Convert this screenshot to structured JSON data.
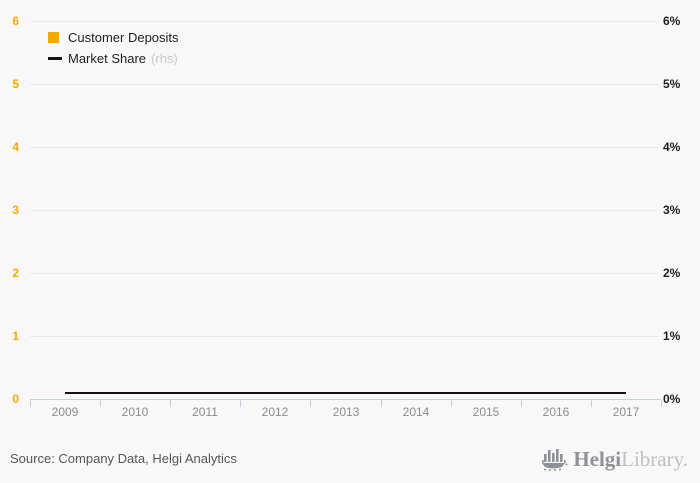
{
  "chart_data": {
    "type": "bar",
    "note_types": {
      "Customer Deposits": "bar",
      "Market Share": "line"
    },
    "categories": [
      "2009",
      "2010",
      "2011",
      "2012",
      "2013",
      "2014",
      "2015",
      "2016",
      "2017"
    ],
    "series": [
      {
        "name": "Customer Deposits",
        "axis": "left",
        "kind": "bar",
        "values": [
          0,
          0,
          0,
          0,
          0,
          0,
          0,
          0,
          0
        ]
      },
      {
        "name": "Market Share",
        "axis": "right",
        "kind": "line",
        "values": [
          0.1,
          0.1,
          0.1,
          0.1,
          0.1,
          0.1,
          0.1,
          0.1,
          0.1
        ]
      }
    ],
    "title": "",
    "xlabel": "",
    "ylabel_left": "",
    "ylabel_right": "",
    "left_axis": {
      "range": [
        0,
        6
      ],
      "ticks": [
        "6",
        "5",
        "4",
        "3",
        "2",
        "1",
        "0"
      ]
    },
    "right_axis": {
      "range": [
        0,
        6
      ],
      "ticks": [
        "6%",
        "5%",
        "4%",
        "3%",
        "2%",
        "1%",
        "0%"
      ]
    },
    "grid": "horizontal",
    "legend_position": "top-left"
  },
  "legend": {
    "items": [
      {
        "label": "Customer Deposits",
        "swatch": "square",
        "color": "#f7a800"
      },
      {
        "label": "Market Share",
        "suffix": "(rhs)",
        "swatch": "line",
        "color": "#141414"
      }
    ]
  },
  "footer": {
    "source": "Source: Company Data, Helgi Analytics",
    "logo": {
      "icon": "helgi-ship-icon",
      "brand_bold": "Helgi",
      "brand_light": "Library."
    }
  },
  "colors": {
    "background": "#f8f8f8",
    "bar_accent": "#f7a800",
    "left_axis_labels": "#f5a800",
    "right_axis_labels": "#1f1f1f",
    "line_series": "#141414",
    "gridline": "#e9e9e9",
    "axis_line": "#c7cfe6",
    "year_labels": "#8c8c8c",
    "rhs_suffix": "#c9c9c9",
    "source_text": "#565656",
    "logo_dark": "#8e9196",
    "logo_light": "#bdc0c4"
  }
}
